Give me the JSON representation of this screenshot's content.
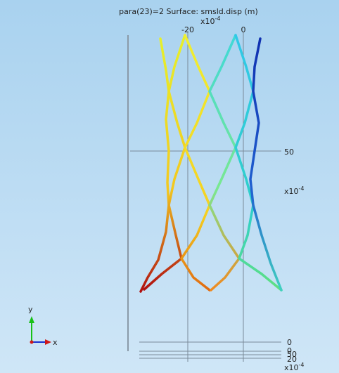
{
  "title": "para(23)=2   Surface: smsld.disp (m)",
  "top_axis": {
    "multiplier": {
      "base": "x10",
      "exp": "-4"
    },
    "ticks": [
      "-20",
      "0"
    ]
  },
  "right_axis": {
    "ticks": [
      "50"
    ],
    "multiplier": {
      "base": "x10",
      "exp": "-4"
    }
  },
  "bottom_axis": {
    "ticks": [
      "0",
      "0",
      "50",
      "20"
    ],
    "multiplier": {
      "base": "x10",
      "exp": "-4"
    }
  },
  "triad": {
    "y": "y",
    "x": "x"
  }
}
